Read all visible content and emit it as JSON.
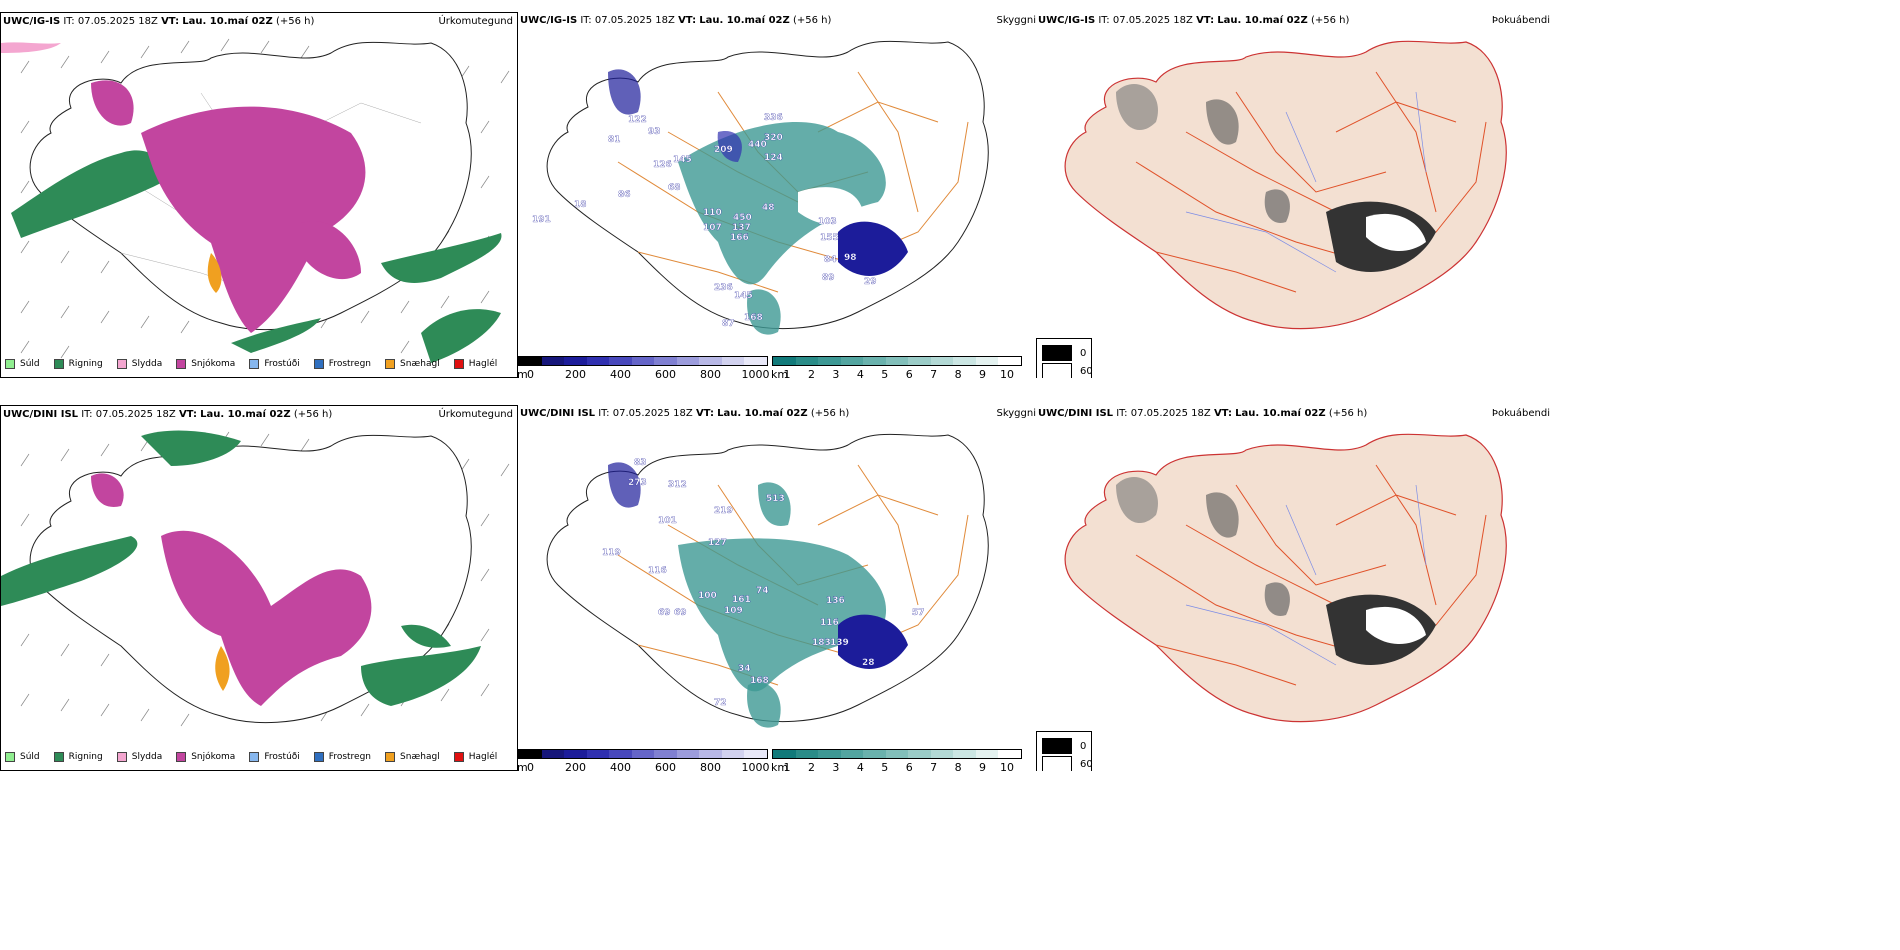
{
  "rows": [
    {
      "model": "UWC/IG-IS",
      "it": "IT: 07.05.2025 18Z",
      "vt_label": "VT:",
      "vt": "Lau. 10.maí 02Z",
      "lead": "(+56 h)"
    },
    {
      "model": "UWC/DINI ISL",
      "it": "IT: 07.05.2025 18Z",
      "vt_label": "VT:",
      "vt": "Lau. 10.maí 02Z",
      "lead": "(+56 h)"
    }
  ],
  "panel_titles": {
    "precip": "Úrkomutegund",
    "cloud": "Skyggni",
    "fog": "Þokuábendi"
  },
  "precip_legend": [
    {
      "label": "Súld",
      "color": "#90ee90"
    },
    {
      "label": "Rigning",
      "color": "#2e8b57"
    },
    {
      "label": "Slydda",
      "color": "#f4a6d0"
    },
    {
      "label": "Snjókoma",
      "color": "#c2459f"
    },
    {
      "label": "Frostúði",
      "color": "#87b7ee"
    },
    {
      "label": "Frostregn",
      "color": "#2f6fbf"
    },
    {
      "label": "Snæhagl",
      "color": "#f0a020"
    },
    {
      "label": "Haglél",
      "color": "#e01010"
    }
  ],
  "ceiling_scale": {
    "unit": "m",
    "ticks": [
      "0",
      "200",
      "400",
      "600",
      "800",
      "1000"
    ],
    "colors": [
      "#000000",
      "#16167a",
      "#1c1c9a",
      "#3030b0",
      "#4848bc",
      "#6565c8",
      "#8080d2",
      "#9c9cdc",
      "#b8b8e6",
      "#d2d2ef",
      "#e8e8f8"
    ]
  },
  "visibility_scale": {
    "unit": "km",
    "ticks": [
      "1",
      "2",
      "3",
      "4",
      "5",
      "6",
      "7",
      "8",
      "9",
      "10"
    ],
    "colors": [
      "#117a7a",
      "#2a8c88",
      "#3d9894",
      "#53a5a0",
      "#6ab2ad",
      "#82bfba",
      "#9bccc7",
      "#b3d9d5",
      "#cbe6e3",
      "#e4f2f0",
      "#ffffff"
    ]
  },
  "fog_scale": {
    "items": [
      {
        "label": "0",
        "color": "#000000"
      },
      {
        "label": "60",
        "color": "#ffffff"
      }
    ]
  },
  "ceiling_labels_top": [
    "336",
    "320",
    "124",
    "209",
    "440",
    "93",
    "145",
    "122",
    "126",
    "81",
    "86",
    "68",
    "48",
    "110",
    "450",
    "107",
    "166",
    "137",
    "103",
    "155",
    "84",
    "98",
    "89",
    "29",
    "236",
    "145",
    "168",
    "87",
    "18",
    "191"
  ],
  "ceiling_labels_bottom": [
    "83",
    "273",
    "312",
    "513",
    "101",
    "219",
    "127",
    "116",
    "100",
    "161",
    "74",
    "109",
    "136",
    "116",
    "183",
    "139",
    "28",
    "57",
    "69",
    "168",
    "72",
    "34",
    "69",
    "119"
  ]
}
